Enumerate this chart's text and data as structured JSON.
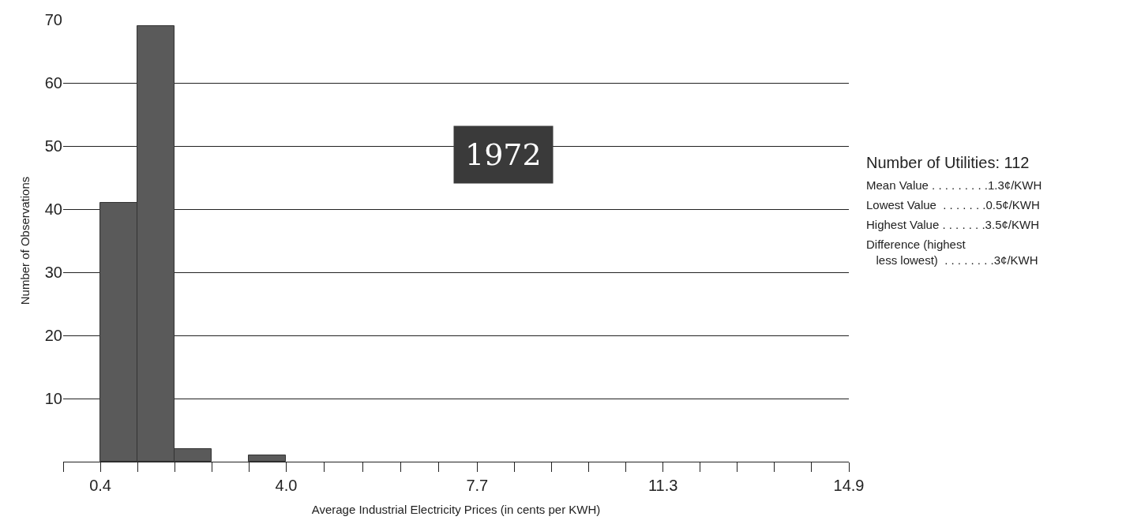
{
  "chart_data": {
    "type": "histogram",
    "bins": [
      0.4,
      1.12,
      1.84,
      2.56,
      3.28,
      4.0
    ],
    "values": [
      41,
      69,
      2,
      0,
      1
    ],
    "color": "#5a5a5a",
    "xlabel": "Average Industrial Electricity Prices (in cents per KWH)",
    "ylabel": "Number of Observations",
    "xlim": [
      -0.32,
      14.9
    ],
    "xticks": [
      {
        "value": -0.32,
        "label": null
      },
      0.4,
      {
        "value": 1.12,
        "label": null
      },
      {
        "value": 1.84,
        "label": null
      },
      {
        "value": 2.56,
        "label": null
      },
      {
        "value": 3.28,
        "label": null
      },
      {
        "value": 4.0,
        "label": "4.0"
      },
      {
        "value": 4.74,
        "label": null
      },
      {
        "value": 5.48,
        "label": null
      },
      {
        "value": 6.22,
        "label": null
      },
      {
        "value": 6.96,
        "label": null
      },
      7.7,
      {
        "value": 8.42,
        "label": null
      },
      {
        "value": 9.14,
        "label": null
      },
      {
        "value": 9.86,
        "label": null
      },
      {
        "value": 10.58,
        "label": null
      },
      11.3,
      {
        "value": 12.02,
        "label": null
      },
      {
        "value": 12.74,
        "label": null
      },
      {
        "value": 13.46,
        "label": null
      },
      {
        "value": 14.18,
        "label": null
      },
      14.9
    ],
    "ylim": [
      0,
      70
    ],
    "yticks": [
      10,
      20,
      30,
      40,
      50,
      60,
      70
    ],
    "grid": "y",
    "annotations": [
      "1972",
      "Number of Utilities: 112",
      "Mean Value . . . . . . . . .1.3¢/KWH",
      "Lowest Value  . . . . . . .0.5¢/KWH",
      "Highest Value . . . . . . .3.5¢/KWH",
      "Difference (highest\n   less lowest)  . . . . . . . .3¢/KWH"
    ]
  }
}
